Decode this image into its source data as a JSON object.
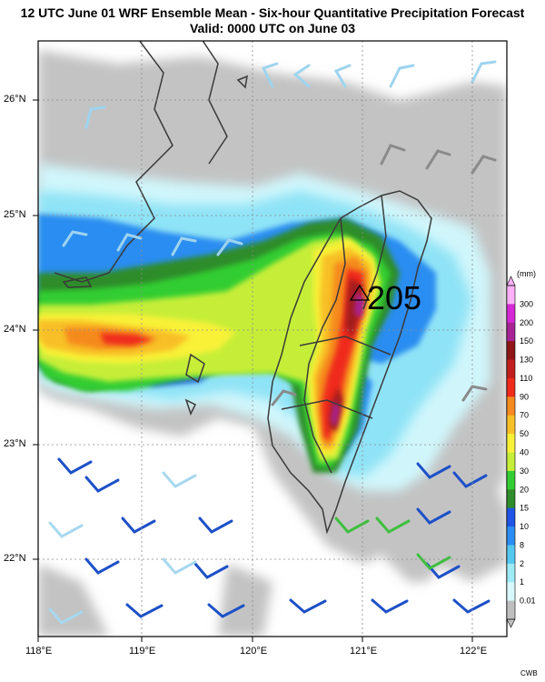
{
  "title": "12 UTC June 01 WRF Ensemble Mean - Six-hour Quantitative Precipitation Forecast",
  "subtitle": "Valid: 0000 UTC on June 03",
  "lon_labels": [
    "118°E",
    "119°E",
    "120°E",
    "121°E",
    "122°E"
  ],
  "lat_labels": [
    "26°N",
    "25°N",
    "24°N",
    "23°N",
    "22°N"
  ],
  "legend": {
    "unit": "(mm)",
    "levels": [
      "0.01",
      "1",
      "2",
      "8",
      "10",
      "15",
      "20",
      "30",
      "40",
      "50",
      "70",
      "90",
      "110",
      "130",
      "150",
      "200",
      "300"
    ],
    "colors": [
      "#bfbfbf",
      "#d8f8fb",
      "#9eeaf7",
      "#52c8ef",
      "#2b8df1",
      "#1f54e6",
      "#2f8c2b",
      "#33cd33",
      "#c6ee38",
      "#f8f137",
      "#f8c028",
      "#f58a1f",
      "#ef2a1b",
      "#c2201c",
      "#8e1616",
      "#a82494",
      "#d529d6",
      "#fbb0f8"
    ]
  },
  "max_annotation": "205",
  "credit": "CWB",
  "map_extent": {
    "lon": [
      117.8,
      122.35
    ],
    "lat": [
      21.4,
      26.5
    ]
  }
}
